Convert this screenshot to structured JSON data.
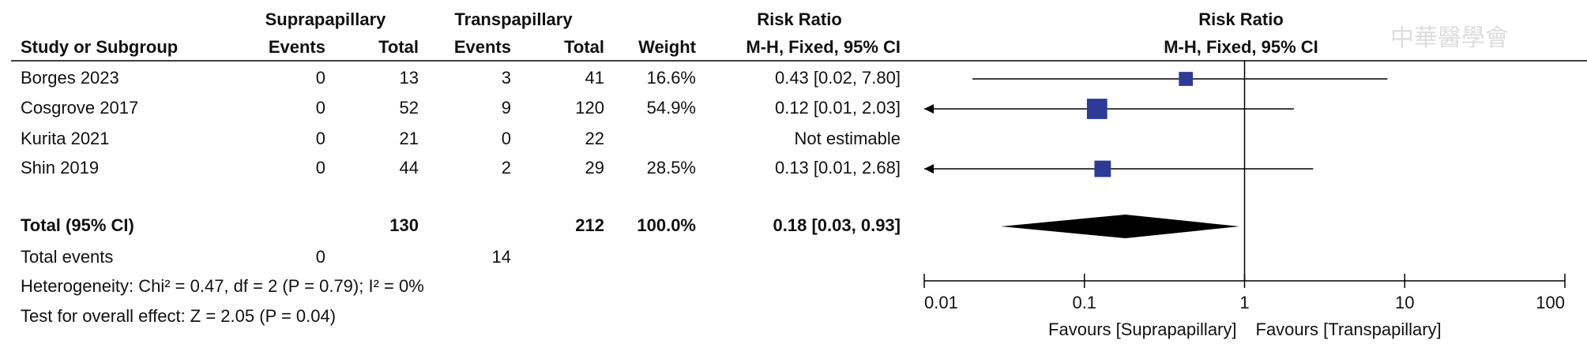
{
  "chart_data": {
    "type": "forest",
    "group_headers": {
      "group1": "Suprapapillary",
      "group2": "Transpapillary",
      "table_effect": "Risk Ratio",
      "plot_effect": "Risk Ratio"
    },
    "column_headers": {
      "study": "Study or Subgroup",
      "events1": "Events",
      "total1": "Total",
      "events2": "Events",
      "total2": "Total",
      "weight": "Weight",
      "ci": "M-H, Fixed, 95% CI",
      "plot_ci": "M-H, Fixed, 95% CI"
    },
    "studies": [
      {
        "name": "Borges 2023",
        "events1": 0,
        "total1": 13,
        "events2": 3,
        "total2": 41,
        "weight": 16.6,
        "weight_label": "16.6%",
        "ci_label": "0.43 [0.02, 7.80]",
        "rr": 0.43,
        "lo": 0.02,
        "hi": 7.8
      },
      {
        "name": "Cosgrove 2017",
        "events1": 0,
        "total1": 52,
        "events2": 9,
        "total2": 120,
        "weight": 54.9,
        "weight_label": "54.9%",
        "ci_label": "0.12 [0.01, 2.03]",
        "rr": 0.12,
        "lo": 0.01,
        "hi": 2.03
      },
      {
        "name": "Kurita 2021",
        "events1": 0,
        "total1": 21,
        "events2": 0,
        "total2": 22,
        "weight": null,
        "weight_label": null,
        "ci_label": "Not estimable",
        "rr": null,
        "lo": null,
        "hi": null
      },
      {
        "name": "Shin 2019",
        "events1": 0,
        "total1": 44,
        "events2": 2,
        "total2": 29,
        "weight": 28.5,
        "weight_label": "28.5%",
        "ci_label": "0.13 [0.01, 2.68]",
        "rr": 0.13,
        "lo": 0.01,
        "hi": 2.68
      }
    ],
    "total": {
      "name": "Total (95% CI)",
      "total1": 130,
      "total2": 212,
      "weight": 100.0,
      "weight_label": "100.0%",
      "ci_label": "0.18 [0.03, 0.93]",
      "rr": 0.18,
      "lo": 0.03,
      "hi": 0.93
    },
    "total_events": {
      "name": "Total events",
      "events1": 0,
      "events2": 14
    },
    "heterogeneity": "Heterogeneity: Chi² = 0.47, df = 2 (P = 0.79); I² = 0%",
    "overall_effect": "Test for overall effect: Z = 2.05 (P = 0.04)",
    "log_scale": true,
    "xlim": [
      0.01,
      100
    ],
    "xticks": [
      0.01,
      0.1,
      1,
      10,
      100
    ],
    "reference_line": 1,
    "favours": {
      "left": "Favours [Suprapapillary]",
      "right": "Favours [Transpapillary]"
    },
    "color": "#2e3b96",
    "watermark": "中華醫學會"
  }
}
